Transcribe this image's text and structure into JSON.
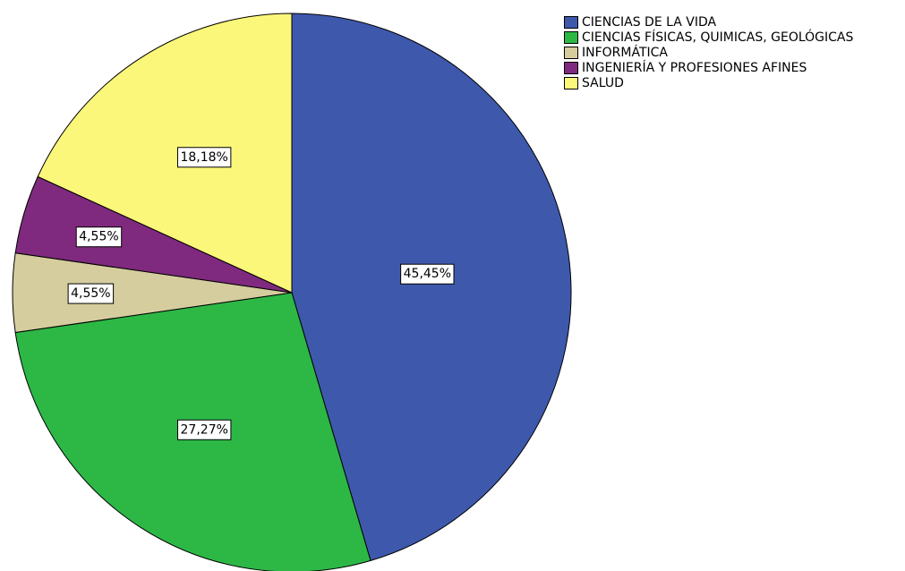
{
  "chart_data": {
    "type": "pie",
    "categories": [
      "CIENCIAS DE LA VIDA",
      "CIENCIAS FÍSICAS, QUIMICAS, GEOLÓGICAS",
      "INFORMÁTICA",
      "INGENIERÍA Y PROFESIONES AFINES",
      "SALUD"
    ],
    "values": [
      45.45,
      27.27,
      4.55,
      4.55,
      18.18
    ],
    "value_labels": [
      "45,45%",
      "27,27%",
      "4,55%",
      "4,55%",
      "18,18%"
    ],
    "colors": [
      "#3e58ac",
      "#2db846",
      "#d5cd9e",
      "#7f2a7e",
      "#fbf77b"
    ],
    "legend": "top-right"
  }
}
